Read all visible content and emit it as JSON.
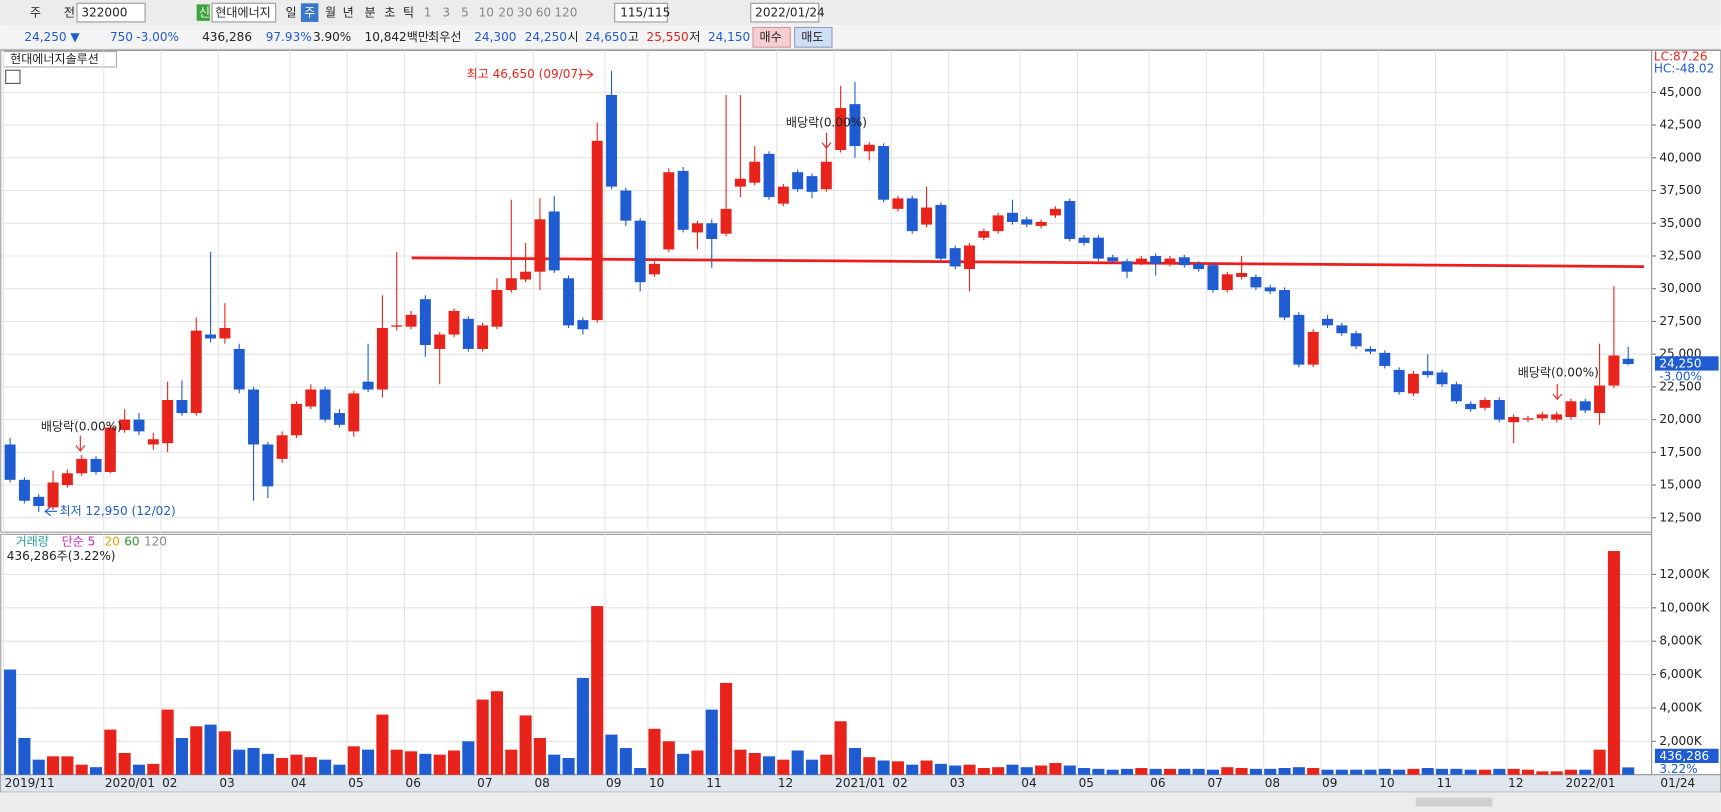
{
  "toolbar": {
    "items": [
      "주",
      "전",
      "322000",
      "신",
      "현대에너지",
      "일",
      "주",
      "월",
      "년",
      "분",
      "초",
      "틱",
      "1",
      "3",
      "5",
      "10",
      "20",
      "30",
      "60",
      "120",
      "115/115",
      "2022/01/24"
    ]
  },
  "quote_bar": {
    "items": [
      "24,250 ▼",
      "750",
      "-3.00%",
      "436,286",
      "97.93%",
      "3.90%",
      "10,842백만",
      "최우선",
      "24,300",
      "24,250",
      "시",
      "24,650",
      "고",
      "25,550",
      "저",
      "24,150",
      "매수",
      "매도"
    ]
  },
  "chart_data": [
    {
      "type": "candlestick",
      "title": "현대에너지솔루션",
      "categories": [
        "2019/11",
        null,
        null,
        null,
        null,
        null,
        null,
        "2020/01",
        null,
        null,
        null,
        "02",
        null,
        null,
        null,
        "03",
        null,
        null,
        null,
        null,
        "04",
        null,
        null,
        null,
        "05",
        null,
        null,
        null,
        "06",
        null,
        null,
        null,
        null,
        "07",
        null,
        null,
        null,
        "08",
        null,
        null,
        null,
        null,
        "09",
        null,
        null,
        "10",
        null,
        null,
        null,
        "11",
        null,
        null,
        null,
        null,
        "12",
        null,
        null,
        null,
        "2021/01",
        null,
        null,
        null,
        "02",
        null,
        null,
        null,
        "03",
        null,
        null,
        null,
        null,
        "04",
        null,
        null,
        null,
        "05",
        null,
        null,
        null,
        null,
        "06",
        null,
        null,
        null,
        "07",
        null,
        null,
        null,
        "08",
        null,
        null,
        null,
        "09",
        null,
        null,
        null,
        "10",
        null,
        null,
        null,
        "11",
        null,
        null,
        null,
        null,
        "12",
        null,
        null,
        null,
        "2022/01",
        null,
        null,
        null,
        null
      ],
      "open": [
        18100,
        15400,
        14100,
        13300,
        15000,
        15900,
        17000,
        16000,
        19200,
        20000,
        18100,
        18200,
        21500,
        20500,
        26500,
        26200,
        25400,
        22300,
        18100,
        17000,
        18800,
        21000,
        22300,
        20500,
        19100,
        22900,
        22300,
        27100,
        27100,
        29200,
        25400,
        26500,
        27700,
        25400,
        27100,
        29900,
        30700,
        31300,
        35900,
        30800,
        27600,
        27600,
        44800,
        37500,
        35200,
        31100,
        33000,
        39000,
        34300,
        35000,
        34200,
        37800,
        38100,
        40300,
        36500,
        38900,
        38600,
        37600,
        40600,
        44100,
        40500,
        40900,
        36100,
        36900,
        34900,
        36400,
        33100,
        31500,
        33900,
        34400,
        35800,
        35300,
        34800,
        35600,
        36700,
        33900,
        33900,
        32400,
        32100,
        32000,
        32500,
        31900,
        32400,
        31900,
        31800,
        29900,
        30900,
        30900,
        30100,
        29900,
        28000,
        24200,
        27700,
        27200,
        26600,
        25400,
        25100,
        23800,
        22000,
        23700,
        23600,
        22700,
        21200,
        20900,
        21500,
        19800,
        20000,
        20100,
        20000,
        20200,
        21400,
        20500,
        22600,
        24650
      ],
      "high": [
        18600,
        15600,
        14300,
        16100,
        16200,
        17300,
        17200,
        19600,
        20800,
        20500,
        19000,
        22900,
        23000,
        27800,
        32800,
        28900,
        25800,
        22500,
        18300,
        19100,
        21400,
        22700,
        22500,
        20800,
        22200,
        25800,
        29500,
        32800,
        28300,
        29500,
        26700,
        28500,
        27900,
        27400,
        30800,
        36800,
        33500,
        36900,
        37100,
        31000,
        27800,
        42700,
        46650,
        37700,
        35400,
        32100,
        39200,
        39300,
        35200,
        35300,
        44800,
        44800,
        40900,
        40500,
        38000,
        39100,
        38800,
        41000,
        45500,
        45800,
        41200,
        41100,
        37100,
        37100,
        37800,
        36600,
        33300,
        33500,
        34600,
        35800,
        36800,
        35500,
        35300,
        36300,
        36900,
        34100,
        34100,
        32600,
        32300,
        32500,
        32700,
        32500,
        32600,
        32100,
        32000,
        31300,
        32500,
        31100,
        30300,
        30100,
        28200,
        26900,
        28000,
        27400,
        26800,
        25600,
        25300,
        24000,
        23700,
        25000,
        23800,
        22900,
        21400,
        21700,
        21700,
        20400,
        20300,
        20600,
        20600,
        21600,
        21600,
        25800,
        30200,
        25550
      ],
      "low": [
        15200,
        13600,
        12950,
        13100,
        14800,
        15700,
        15800,
        15900,
        19000,
        18800,
        17700,
        17500,
        20300,
        20300,
        25900,
        25800,
        22000,
        13800,
        14000,
        16700,
        18600,
        20800,
        19800,
        19400,
        18700,
        22100,
        21700,
        26800,
        26900,
        24800,
        22700,
        26300,
        25200,
        25200,
        26900,
        29700,
        30500,
        29900,
        31200,
        27000,
        26500,
        27400,
        37600,
        34800,
        29800,
        30900,
        32800,
        34300,
        33000,
        31600,
        34000,
        37000,
        37900,
        36800,
        36300,
        37400,
        36900,
        37400,
        40400,
        40000,
        39800,
        36600,
        35900,
        34200,
        34700,
        32100,
        31500,
        29800,
        33700,
        34200,
        34900,
        34700,
        34600,
        35400,
        33600,
        33300,
        32100,
        31900,
        30800,
        31800,
        31000,
        31700,
        31600,
        31300,
        29700,
        29700,
        30700,
        29900,
        29600,
        27600,
        24000,
        24000,
        27000,
        26400,
        25400,
        25000,
        23900,
        21900,
        21800,
        23200,
        22500,
        21200,
        20600,
        20700,
        19800,
        18200,
        19800,
        19900,
        19800,
        20000,
        20500,
        19600,
        22400,
        24150
      ],
      "close": [
        15400,
        13800,
        13400,
        15200,
        15900,
        17000,
        16000,
        19400,
        20000,
        19100,
        18500,
        21500,
        20500,
        26800,
        26200,
        27000,
        22300,
        18100,
        14900,
        18800,
        21200,
        22300,
        20000,
        19600,
        22000,
        22300,
        27000,
        27200,
        28000,
        25700,
        26500,
        28300,
        25400,
        27200,
        29900,
        30800,
        31300,
        35300,
        31400,
        27200,
        26900,
        41300,
        37800,
        35200,
        30500,
        31900,
        38900,
        34500,
        35000,
        33800,
        36100,
        38400,
        39700,
        37000,
        37800,
        37600,
        37400,
        39700,
        43800,
        40900,
        41000,
        36800,
        36900,
        34400,
        36200,
        32300,
        31700,
        33300,
        34400,
        35600,
        35100,
        34900,
        35100,
        36100,
        33800,
        33500,
        32300,
        32100,
        31300,
        32300,
        31900,
        32300,
        31800,
        31500,
        29900,
        31100,
        31200,
        30100,
        29800,
        27800,
        24200,
        26700,
        27200,
        26600,
        25600,
        25200,
        24100,
        22100,
        23500,
        23400,
        22700,
        21400,
        20800,
        21500,
        20000,
        20200,
        20100,
        20400,
        20400,
        21400,
        20700,
        22600,
        24900,
        24250
      ],
      "up_color": "#e8231b",
      "down_color": "#1f5bd1",
      "ylim": [
        11400,
        48200
      ],
      "yticks": [
        {
          "value": 12500,
          "label": "12,500"
        },
        {
          "value": 15000,
          "label": "15,000"
        },
        {
          "value": 17500,
          "label": "17,500"
        },
        {
          "value": 20000,
          "label": "20,000"
        },
        {
          "value": 22500,
          "label": "22,500"
        },
        {
          "value": 25000,
          "label": "25,000"
        },
        {
          "value": 27500,
          "label": "27,500"
        },
        {
          "value": 30000,
          "label": "30,000"
        },
        {
          "value": 32500,
          "label": "32,500"
        },
        {
          "value": 35000,
          "label": "35,000"
        },
        {
          "value": 37500,
          "label": "37,500"
        },
        {
          "value": 40000,
          "label": "40,000"
        },
        {
          "value": 42500,
          "label": "42,500"
        },
        {
          "value": 45000,
          "label": "45,000"
        }
      ],
      "grid": true,
      "annotations": [
        "최고 46,650 (09/07)",
        "최저 12,950 (12/02)",
        "배당락(0.00%)",
        "배당락(0.00%)",
        "배당락(0.00%)"
      ],
      "lc_label": "LC:87.26",
      "hc_label": "HC:-48.02",
      "last_price_label": "24,250",
      "last_change_label": "-3.00%",
      "current_date": "01/24"
    },
    {
      "type": "bar",
      "title": "거래량",
      "legend": [
        "단순 5",
        "20",
        "60",
        "120"
      ],
      "subtitle": "436,286주(3.22%)",
      "values": [
        6300,
        2200,
        900,
        1100,
        1100,
        600,
        450,
        2700,
        1300,
        600,
        650,
        3900,
        2200,
        2900,
        3000,
        2600,
        1500,
        1600,
        1250,
        1000,
        1200,
        1050,
        900,
        600,
        1700,
        1500,
        3600,
        1500,
        1400,
        1250,
        1200,
        1450,
        2000,
        4500,
        5000,
        1500,
        3550,
        2200,
        1200,
        1000,
        5800,
        10100,
        2400,
        1600,
        400,
        2750,
        2000,
        1250,
        1450,
        3900,
        5500,
        1500,
        1300,
        1100,
        900,
        1450,
        900,
        1200,
        3200,
        1600,
        1050,
        850,
        800,
        600,
        850,
        650,
        550,
        600,
        400,
        450,
        600,
        450,
        550,
        700,
        550,
        400,
        350,
        300,
        350,
        400,
        350,
        350,
        350,
        350,
        300,
        450,
        400,
        350,
        350,
        400,
        450,
        400,
        300,
        300,
        300,
        300,
        350,
        300,
        350,
        400,
        350,
        350,
        300,
        300,
        350,
        350,
        300,
        200,
        200,
        300,
        300,
        1500,
        13400,
        436.286
      ],
      "ylim": [
        0,
        14200
      ],
      "yticks": [
        {
          "value": 2000,
          "label": "2,000K"
        },
        {
          "value": 4000,
          "label": "4,000K"
        },
        {
          "value": 6000,
          "label": "6,000K"
        },
        {
          "value": 8000,
          "label": "8,000K"
        },
        {
          "value": 10000,
          "label": "10,000K"
        },
        {
          "value": 12000,
          "label": "12,000K"
        }
      ],
      "last_value_label": "436,286",
      "last_pct_label": "3.22%"
    }
  ]
}
